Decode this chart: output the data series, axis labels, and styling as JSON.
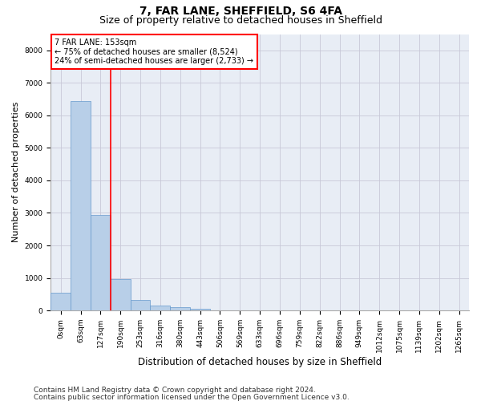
{
  "title1": "7, FAR LANE, SHEFFIELD, S6 4FA",
  "title2": "Size of property relative to detached houses in Sheffield",
  "xlabel": "Distribution of detached houses by size in Sheffield",
  "ylabel": "Number of detached properties",
  "bar_values": [
    550,
    6430,
    2930,
    960,
    330,
    155,
    100,
    60,
    0,
    0,
    0,
    0,
    0,
    0,
    0,
    0,
    0,
    0,
    0,
    0,
    0
  ],
  "bar_labels": [
    "0sqm",
    "63sqm",
    "127sqm",
    "190sqm",
    "253sqm",
    "316sqm",
    "380sqm",
    "443sqm",
    "506sqm",
    "569sqm",
    "633sqm",
    "696sqm",
    "759sqm",
    "822sqm",
    "886sqm",
    "949sqm",
    "1012sqm",
    "1075sqm",
    "1139sqm",
    "1202sqm",
    "1265sqm"
  ],
  "bar_color": "#b8cfe8",
  "bar_edge_color": "#6699cc",
  "annotation_text": "7 FAR LANE: 153sqm\n← 75% of detached houses are smaller (8,524)\n24% of semi-detached houses are larger (2,733) →",
  "annotation_box_color": "white",
  "annotation_box_edge": "red",
  "vline_color": "red",
  "vline_x": 2.5,
  "ylim": [
    0,
    8500
  ],
  "yticks": [
    0,
    1000,
    2000,
    3000,
    4000,
    5000,
    6000,
    7000,
    8000
  ],
  "footer_line1": "Contains HM Land Registry data © Crown copyright and database right 2024.",
  "footer_line2": "Contains public sector information licensed under the Open Government Licence v3.0.",
  "grid_color": "#c8c8d8",
  "bg_color": "#e8edf5",
  "title1_fontsize": 10,
  "title2_fontsize": 9,
  "xlabel_fontsize": 8.5,
  "ylabel_fontsize": 8,
  "tick_fontsize": 6.5,
  "footer_fontsize": 6.5,
  "annotation_fontsize": 7
}
